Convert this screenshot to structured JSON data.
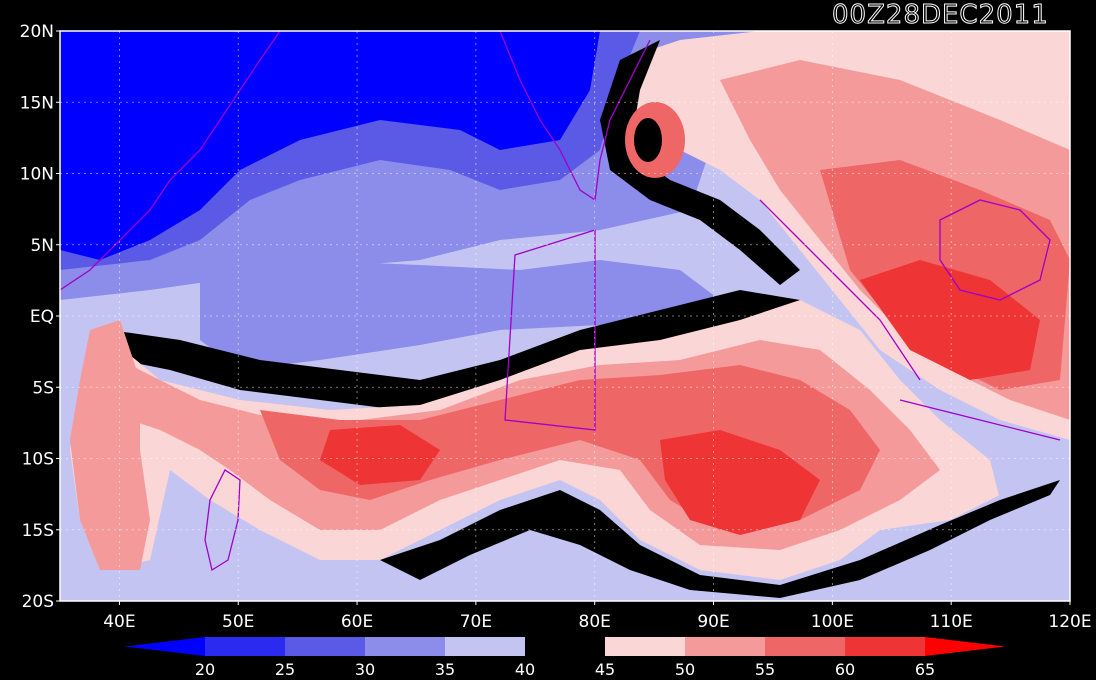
{
  "map": {
    "timestamp": "00Z28DEC2011",
    "lat_labels": [
      "20N",
      "15N",
      "10N",
      "5N",
      "EQ",
      "5S",
      "10S",
      "15S",
      "20S"
    ],
    "lon_labels": [
      "40E",
      "50E",
      "60E",
      "70E",
      "80E",
      "90E",
      "100E",
      "110E",
      "120E"
    ]
  },
  "colorbar": {
    "labels": [
      "20",
      "25",
      "30",
      "35",
      "40",
      "45",
      "50",
      "55",
      "60",
      "65"
    ],
    "colors": [
      "#0000ff",
      "#2a2af0",
      "#5a5ae6",
      "#8c8cea",
      "#c4c4f2",
      "#000000",
      "#fbd6d6",
      "#f49a9a",
      "#ef6666",
      "#ee3434",
      "#ff0000"
    ]
  },
  "colors": {
    "deep_blue": "#0000ff",
    "mid_blue": "#5a5ae6",
    "light_blue": "#c4c4f2",
    "black": "#000000",
    "light_red": "#fbd6d6",
    "mid_red": "#ef6666",
    "deep_red": "#ff0000",
    "coastline": "#a000c8"
  }
}
